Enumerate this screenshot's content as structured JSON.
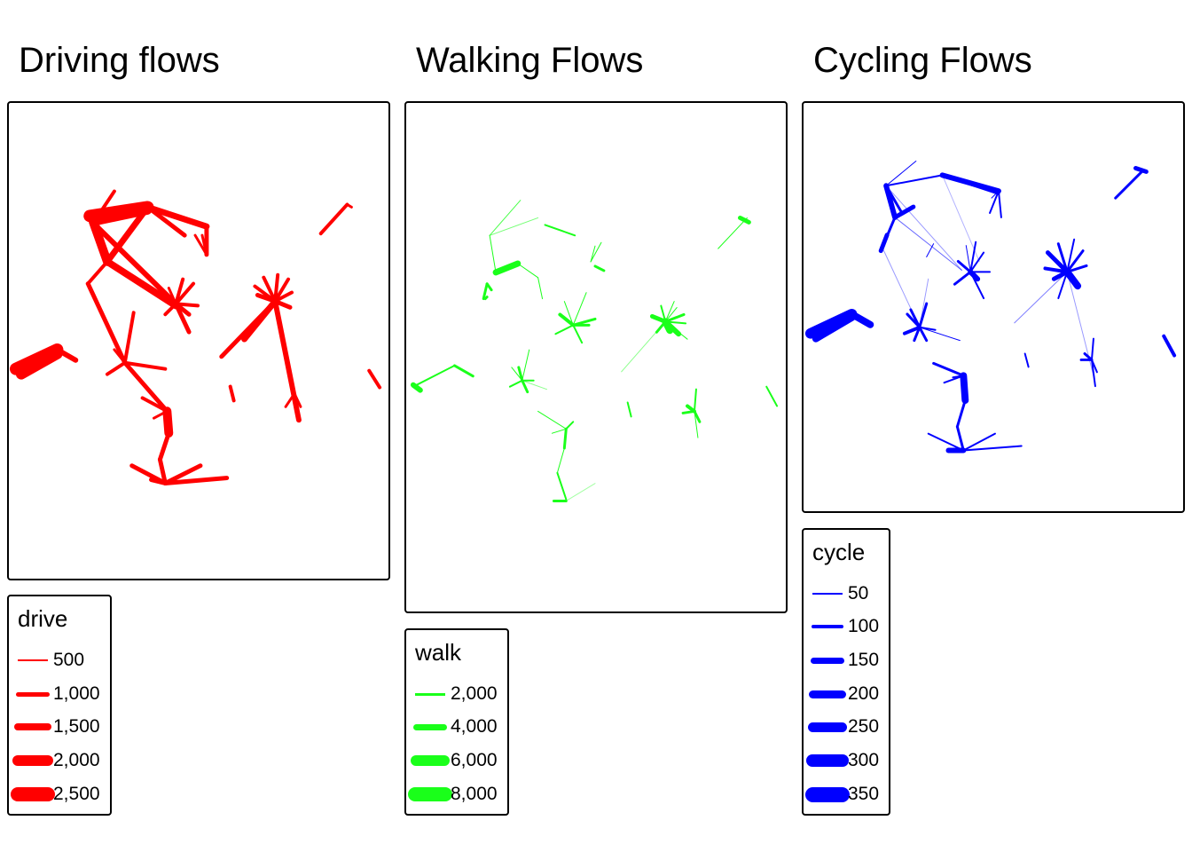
{
  "panels": [
    {
      "id": "drive",
      "title": "Driving flows",
      "color": "#ff0000",
      "legend": {
        "title": "drive",
        "items": [
          {
            "label": "500",
            "value": 500
          },
          {
            "label": "1,000",
            "value": 1000
          },
          {
            "label": "1,500",
            "value": 1500
          },
          {
            "label": "2,000",
            "value": 2000
          },
          {
            "label": "2,500",
            "value": 2500
          }
        ]
      }
    },
    {
      "id": "walk",
      "title": "Walking Flows",
      "color": "#1aff1a",
      "legend": {
        "title": "walk",
        "items": [
          {
            "label": "2,000",
            "value": 2000
          },
          {
            "label": "4,000",
            "value": 4000
          },
          {
            "label": "6,000",
            "value": 6000
          },
          {
            "label": "8,000",
            "value": 8000
          }
        ]
      }
    },
    {
      "id": "cycle",
      "title": "Cycling Flows",
      "color": "#0000ff",
      "legend": {
        "title": "cycle",
        "items": [
          {
            "label": "50",
            "value": 50
          },
          {
            "label": "100",
            "value": 100
          },
          {
            "label": "150",
            "value": 150
          },
          {
            "label": "200",
            "value": 200
          },
          {
            "label": "250",
            "value": 250
          },
          {
            "label": "300",
            "value": 300
          },
          {
            "label": "350",
            "value": 350
          }
        ]
      }
    }
  ]
}
